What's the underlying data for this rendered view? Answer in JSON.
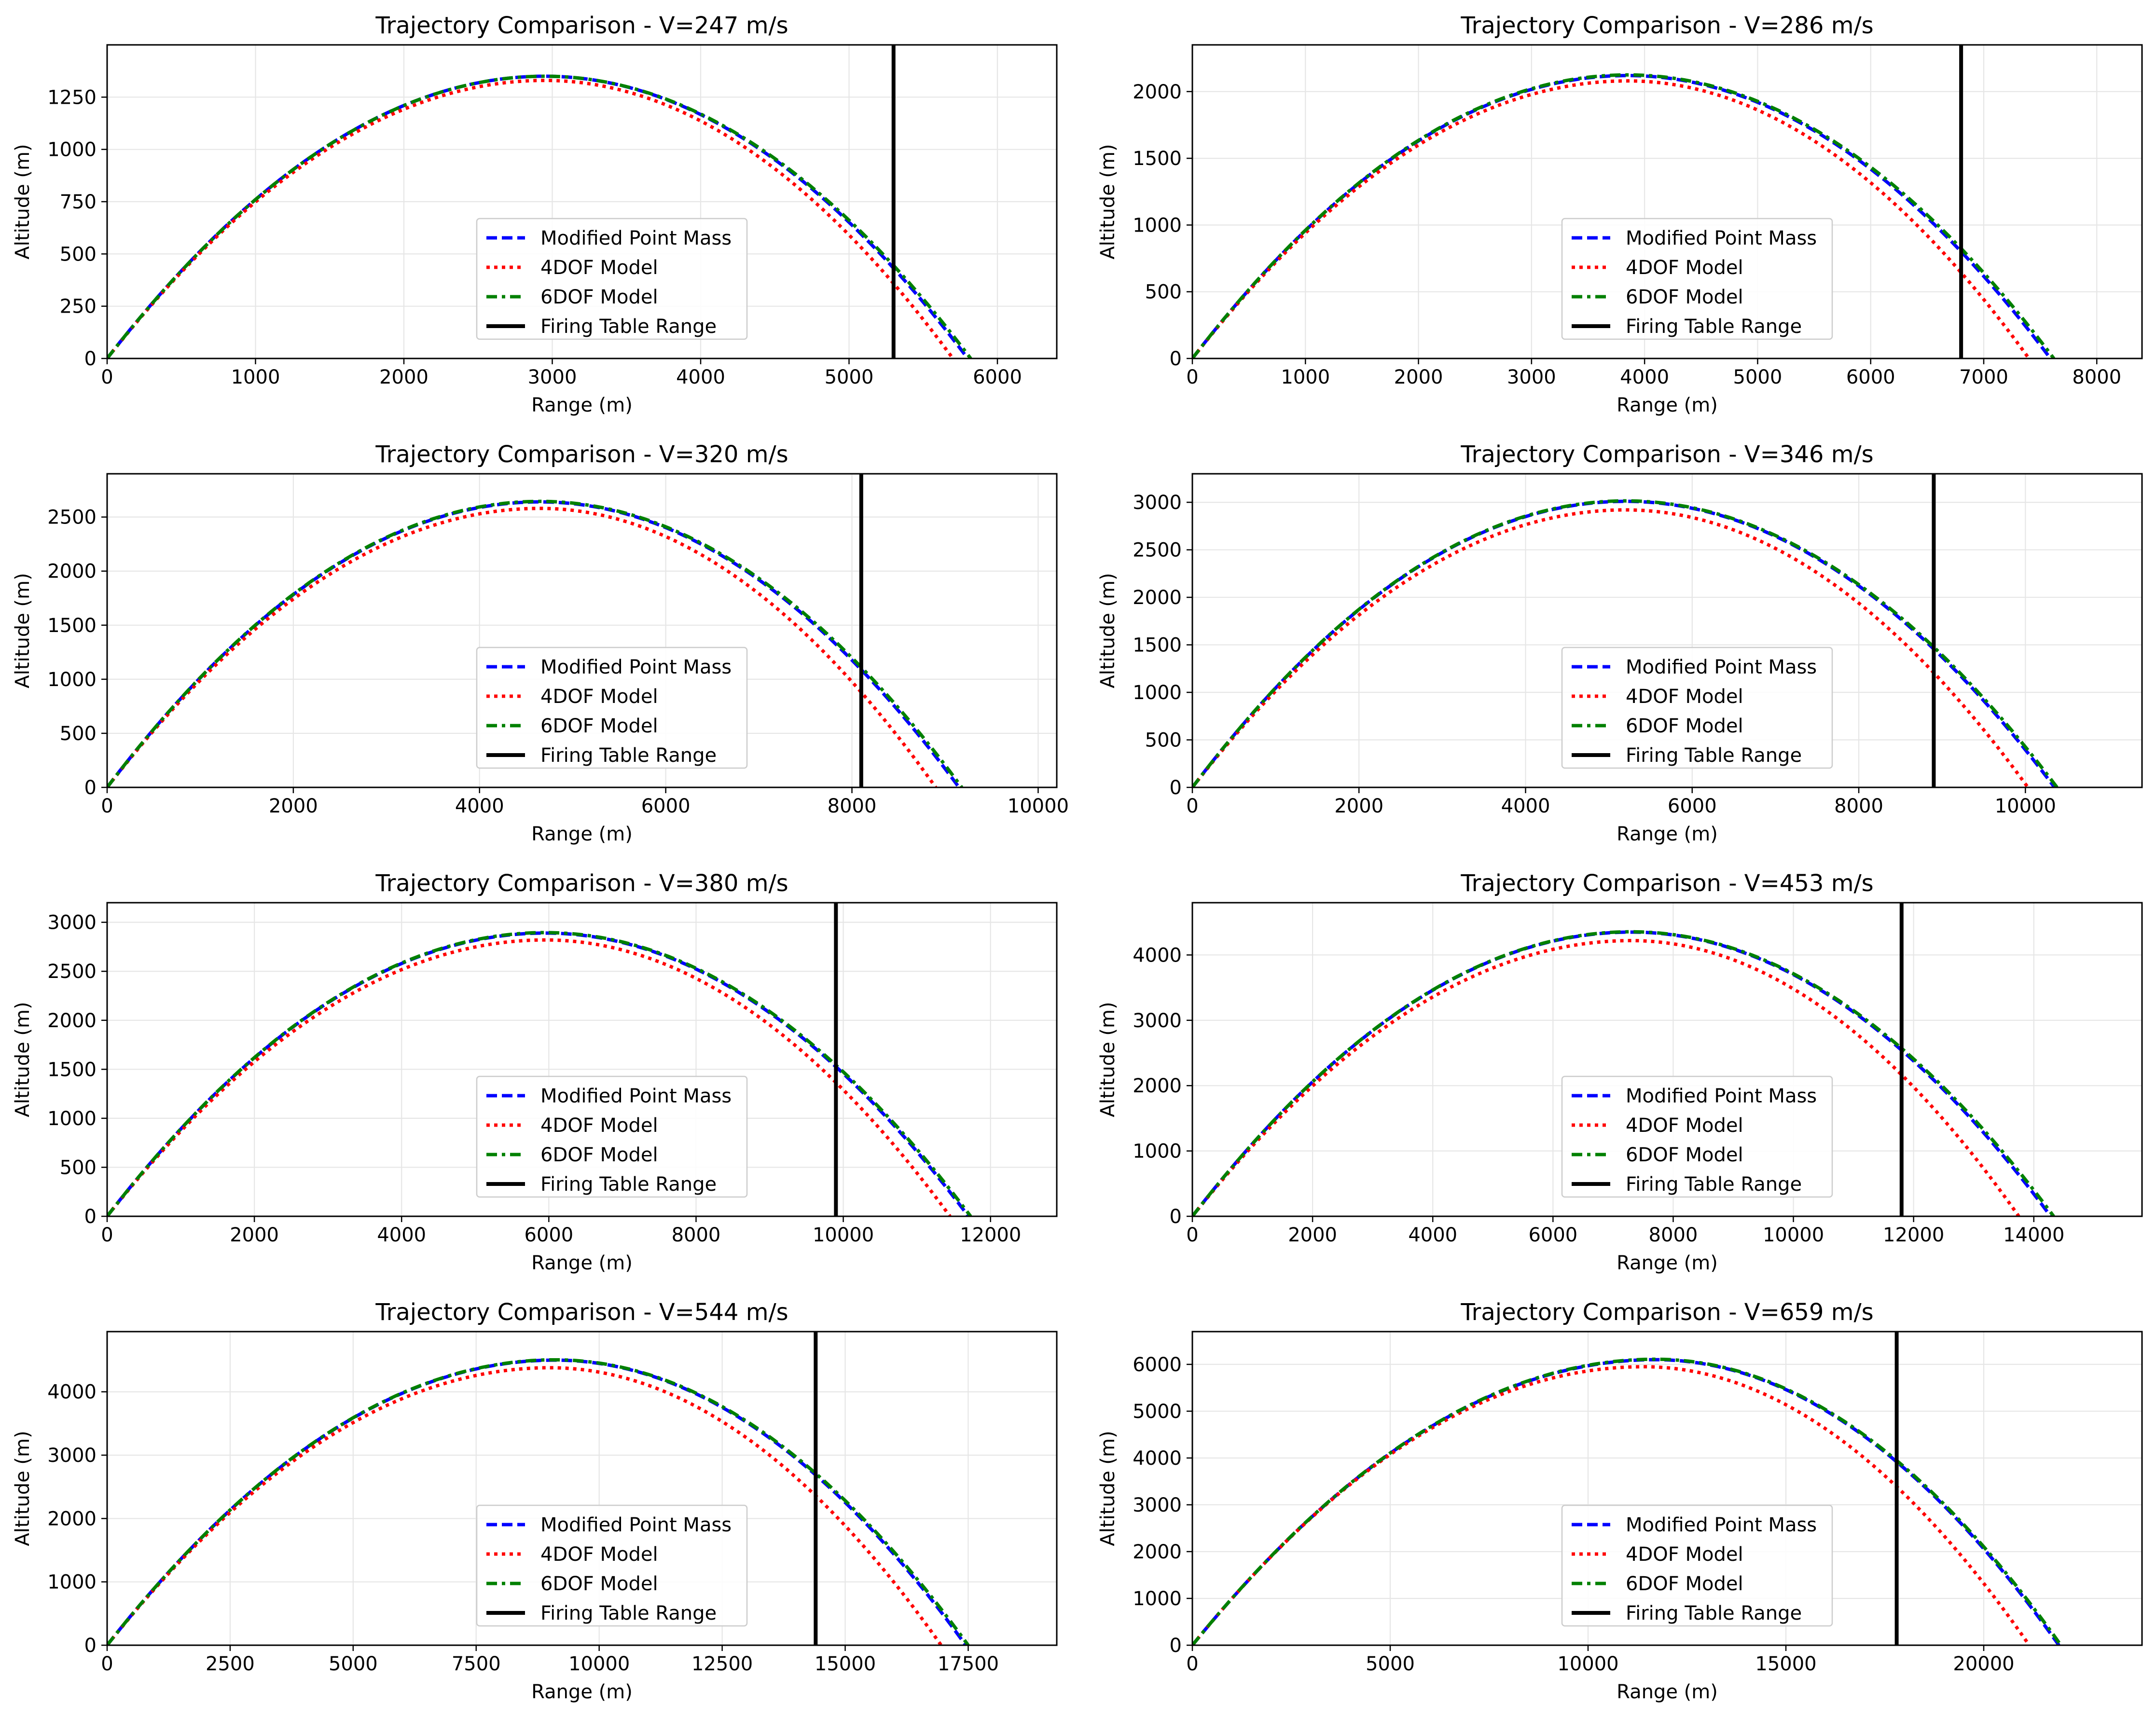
{
  "legend_labels": [
    "Modified Point Mass",
    "4DOF Model",
    "6DOF Model",
    "Firing Table Range"
  ],
  "style": {
    "mpm_color": "#0000ff",
    "dof4_color": "#ff0000",
    "dof6_color": "#008000",
    "ft_color": "#000000",
    "grid_color": "#e6e6e6"
  },
  "chart_data": [
    {
      "type": "line",
      "title": "Trajectory Comparison - V=247 m/s",
      "xlabel": "Range (m)",
      "ylabel": "Altitude (m)",
      "xlim": [
        0,
        6400
      ],
      "ylim": [
        0,
        1500
      ],
      "xticks": [
        0,
        1000,
        2000,
        3000,
        4000,
        5000,
        6000
      ],
      "yticks": [
        0,
        250,
        500,
        750,
        1000,
        1250
      ],
      "grid": true,
      "legend_position": "lower-center",
      "series": [
        {
          "name": "Modified Point Mass",
          "style": "dashed",
          "range": 5800,
          "apex_x": 2950,
          "apex_y": 1350
        },
        {
          "name": "4DOF Model",
          "style": "dotted",
          "range": 5700,
          "apex_x": 2950,
          "apex_y": 1330
        },
        {
          "name": "6DOF Model",
          "style": "dashdot",
          "range": 5820,
          "apex_x": 2950,
          "apex_y": 1350
        }
      ],
      "firing_table_range": 5300
    },
    {
      "type": "line",
      "title": "Trajectory Comparison - V=286 m/s",
      "xlabel": "Range (m)",
      "ylabel": "Altitude (m)",
      "xlim": [
        0,
        8400
      ],
      "ylim": [
        0,
        2350
      ],
      "xticks": [
        0,
        1000,
        2000,
        3000,
        4000,
        5000,
        6000,
        7000,
        8000
      ],
      "yticks": [
        0,
        500,
        1000,
        1500,
        2000
      ],
      "grid": true,
      "legend_position": "lower-center",
      "series": [
        {
          "name": "Modified Point Mass",
          "style": "dashed",
          "range": 7590,
          "apex_x": 3850,
          "apex_y": 2120
        },
        {
          "name": "4DOF Model",
          "style": "dotted",
          "range": 7400,
          "apex_x": 3850,
          "apex_y": 2080
        },
        {
          "name": "6DOF Model",
          "style": "dashdot",
          "range": 7620,
          "apex_x": 3850,
          "apex_y": 2125
        }
      ],
      "firing_table_range": 6800
    },
    {
      "type": "line",
      "title": "Trajectory Comparison - V=320 m/s",
      "xlabel": "Range (m)",
      "ylabel": "Altitude (m)",
      "xlim": [
        0,
        10200
      ],
      "ylim": [
        0,
        2900
      ],
      "xticks": [
        0,
        2000,
        4000,
        6000,
        8000,
        10000
      ],
      "yticks": [
        0,
        500,
        1000,
        1500,
        2000,
        2500
      ],
      "grid": true,
      "legend_position": "lower-center",
      "series": [
        {
          "name": "Modified Point Mass",
          "style": "dashed",
          "range": 9150,
          "apex_x": 4650,
          "apex_y": 2640
        },
        {
          "name": "4DOF Model",
          "style": "dotted",
          "range": 8900,
          "apex_x": 4650,
          "apex_y": 2580
        },
        {
          "name": "6DOF Model",
          "style": "dashdot",
          "range": 9180,
          "apex_x": 4650,
          "apex_y": 2645
        }
      ],
      "firing_table_range": 8100
    },
    {
      "type": "line",
      "title": "Trajectory Comparison - V=346 m/s",
      "xlabel": "Range (m)",
      "ylabel": "Altitude (m)",
      "xlim": [
        0,
        11400
      ],
      "ylim": [
        0,
        3300
      ],
      "xticks": [
        0,
        2000,
        4000,
        6000,
        8000,
        10000
      ],
      "yticks": [
        0,
        500,
        1000,
        1500,
        2000,
        2500,
        3000
      ],
      "grid": true,
      "legend_position": "lower-center",
      "series": [
        {
          "name": "Modified Point Mass",
          "style": "dashed",
          "range": 10350,
          "apex_x": 5200,
          "apex_y": 3010
        },
        {
          "name": "4DOF Model",
          "style": "dotted",
          "range": 10030,
          "apex_x": 5200,
          "apex_y": 2920
        },
        {
          "name": "6DOF Model",
          "style": "dashdot",
          "range": 10380,
          "apex_x": 5200,
          "apex_y": 3015
        }
      ],
      "firing_table_range": 8900
    },
    {
      "type": "line",
      "title": "Trajectory Comparison - V=380 m/s",
      "xlabel": "Range (m)",
      "ylabel": "Altitude (m)",
      "xlim": [
        0,
        12900
      ],
      "ylim": [
        0,
        3200
      ],
      "xticks": [
        0,
        2000,
        4000,
        6000,
        8000,
        10000,
        12000
      ],
      "yticks": [
        0,
        500,
        1000,
        1500,
        2000,
        2500,
        3000
      ],
      "grid": true,
      "legend_position": "lower-center",
      "series": [
        {
          "name": "Modified Point Mass",
          "style": "dashed",
          "range": 11700,
          "apex_x": 5950,
          "apex_y": 2890
        },
        {
          "name": "4DOF Model",
          "style": "dotted",
          "range": 11450,
          "apex_x": 5950,
          "apex_y": 2820
        },
        {
          "name": "6DOF Model",
          "style": "dashdot",
          "range": 11730,
          "apex_x": 5950,
          "apex_y": 2895
        }
      ],
      "firing_table_range": 9900
    },
    {
      "type": "line",
      "title": "Trajectory Comparison - V=453 m/s",
      "xlabel": "Range (m)",
      "ylabel": "Altitude (m)",
      "xlim": [
        0,
        15800
      ],
      "ylim": [
        0,
        4800
      ],
      "xticks": [
        0,
        2000,
        4000,
        6000,
        8000,
        10000,
        12000,
        14000
      ],
      "yticks": [
        0,
        1000,
        2000,
        3000,
        4000
      ],
      "grid": true,
      "legend_position": "lower-center",
      "series": [
        {
          "name": "Modified Point Mass",
          "style": "dashed",
          "range": 14280,
          "apex_x": 7300,
          "apex_y": 4350
        },
        {
          "name": "4DOF Model",
          "style": "dotted",
          "range": 13750,
          "apex_x": 7300,
          "apex_y": 4220
        },
        {
          "name": "6DOF Model",
          "style": "dashdot",
          "range": 14330,
          "apex_x": 7300,
          "apex_y": 4355
        }
      ],
      "firing_table_range": 11800
    },
    {
      "type": "line",
      "title": "Trajectory Comparison - V=544 m/s",
      "xlabel": "Range (m)",
      "ylabel": "Altitude (m)",
      "xlim": [
        0,
        19300
      ],
      "ylim": [
        0,
        4950
      ],
      "xticks": [
        0,
        2500,
        5000,
        7500,
        10000,
        12500,
        15000,
        17500
      ],
      "yticks": [
        0,
        1000,
        2000,
        3000,
        4000
      ],
      "grid": true,
      "legend_position": "lower-center",
      "series": [
        {
          "name": "Modified Point Mass",
          "style": "dashed",
          "range": 17450,
          "apex_x": 9100,
          "apex_y": 4500
        },
        {
          "name": "4DOF Model",
          "style": "dotted",
          "range": 16950,
          "apex_x": 9000,
          "apex_y": 4380
        },
        {
          "name": "6DOF Model",
          "style": "dashdot",
          "range": 17500,
          "apex_x": 9100,
          "apex_y": 4505
        }
      ],
      "firing_table_range": 14400
    },
    {
      "type": "line",
      "title": "Trajectory Comparison - V=659 m/s",
      "xlabel": "Range (m)",
      "ylabel": "Altitude (m)",
      "xlim": [
        0,
        24000
      ],
      "ylim": [
        0,
        6700
      ],
      "xticks": [
        0,
        5000,
        10000,
        15000,
        20000
      ],
      "yticks": [
        0,
        1000,
        2000,
        3000,
        4000,
        5000,
        6000
      ],
      "grid": true,
      "legend_position": "lower-center",
      "series": [
        {
          "name": "Modified Point Mass",
          "style": "dashed",
          "range": 21900,
          "apex_x": 11700,
          "apex_y": 6100
        },
        {
          "name": "4DOF Model",
          "style": "dotted",
          "range": 21150,
          "apex_x": 11400,
          "apex_y": 5950
        },
        {
          "name": "6DOF Model",
          "style": "dashdot",
          "range": 21950,
          "apex_x": 11700,
          "apex_y": 6110
        }
      ],
      "firing_table_range": 17800
    }
  ]
}
